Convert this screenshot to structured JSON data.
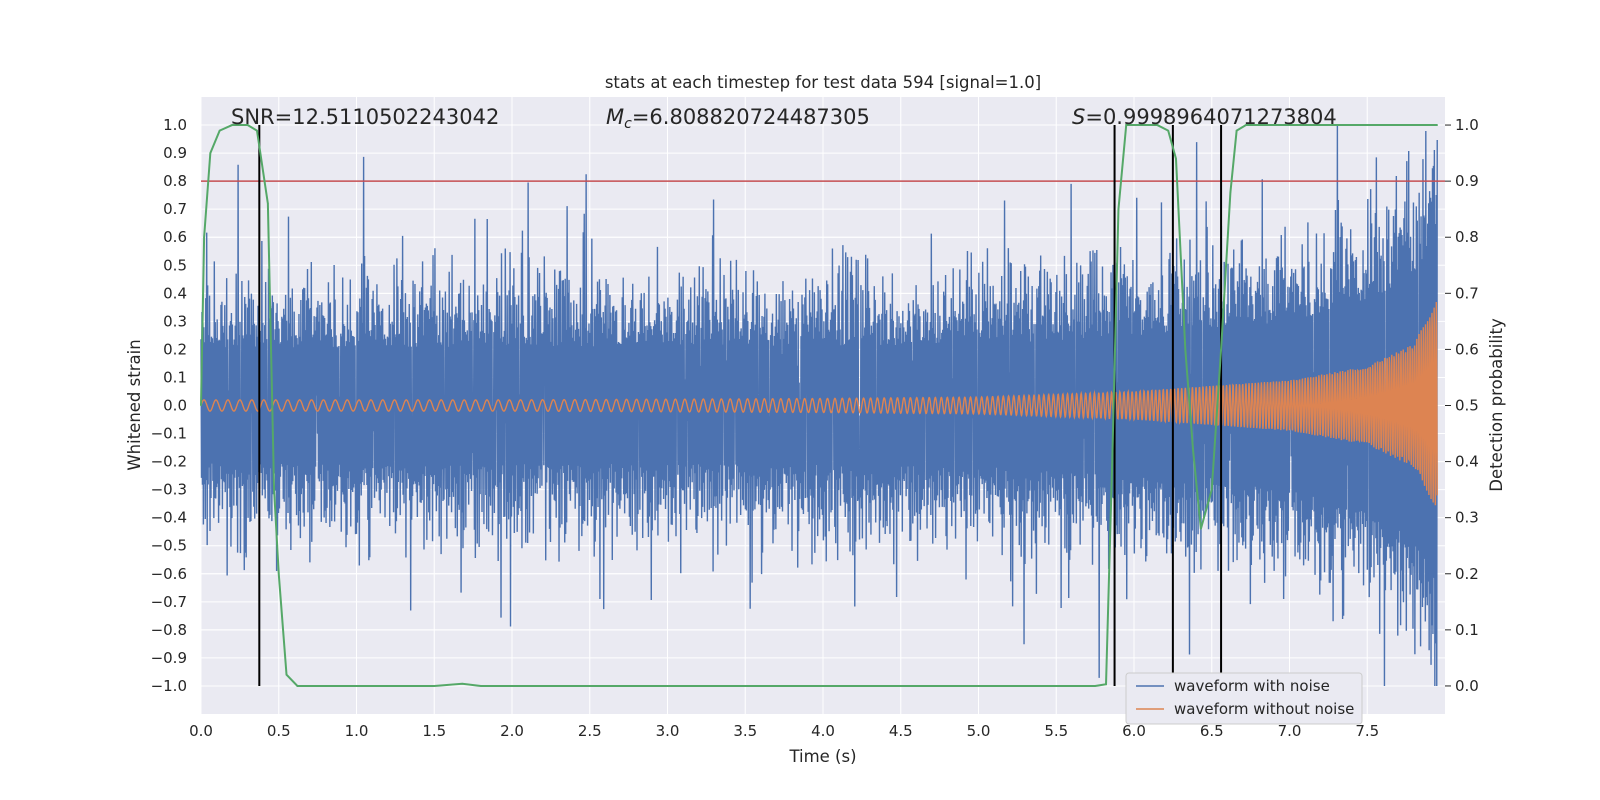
{
  "chart_data": {
    "type": "line",
    "title": "stats at each timestep for test data 594 [signal=1.0]",
    "xlabel": "Time (s)",
    "ylabel": "Whitened strain",
    "y2label": "Detection probability",
    "xlim": [
      0.0,
      8.0
    ],
    "ylim": [
      -1.1,
      1.1
    ],
    "y2lim": [
      -0.05,
      1.05
    ],
    "x_ticks": [
      "0.0",
      "0.5",
      "1.0",
      "1.5",
      "2.0",
      "2.5",
      "3.0",
      "3.5",
      "4.0",
      "4.5",
      "5.0",
      "5.5",
      "6.0",
      "6.5",
      "7.0",
      "7.5"
    ],
    "y_ticks": [
      "1.0",
      "0.9",
      "0.8",
      "0.7",
      "0.6",
      "0.5",
      "0.4",
      "0.3",
      "0.2",
      "0.1",
      "0.0",
      "−0.1",
      "−0.2",
      "−0.3",
      "−0.4",
      "−0.5",
      "−0.6",
      "−0.7",
      "−0.8",
      "−0.9",
      "−1.0"
    ],
    "y2_ticks": [
      "1.0",
      "0.9",
      "0.8",
      "0.7",
      "0.6",
      "0.5",
      "0.4",
      "0.3",
      "0.2",
      "0.1",
      "0.0"
    ],
    "annotations": {
      "snr": "SNR=12.5110502243042",
      "mc_symbol": "M",
      "mc_sub": "c",
      "mc_value": "=6.808820724487305",
      "s_symbol": "S",
      "s_value": "=0.9998964071273804"
    },
    "threshold": {
      "axis": "y2",
      "value": 0.9,
      "color": "#c44e52"
    },
    "vertical_markers": {
      "x": [
        0.375,
        5.875,
        6.25,
        6.56
      ],
      "y2_range": [
        0.0,
        1.0
      ],
      "color": "#000000"
    },
    "series": [
      {
        "name": "waveform with noise",
        "color": "#4c72b0",
        "envelope_t": [
          0.0,
          1.0,
          2.0,
          3.0,
          4.0,
          5.0,
          6.0,
          7.0,
          7.5,
          7.95
        ],
        "envelope_amp": [
          0.34,
          0.34,
          0.34,
          0.34,
          0.34,
          0.34,
          0.36,
          0.38,
          0.42,
          0.45
        ]
      },
      {
        "name": "waveform without noise",
        "color": "#dd8452",
        "chirp_t": [
          0.0,
          2.0,
          4.0,
          5.0,
          6.0,
          7.0,
          7.5,
          7.8,
          7.95
        ],
        "chirp_amp": [
          0.02,
          0.02,
          0.025,
          0.03,
          0.05,
          0.09,
          0.14,
          0.22,
          0.38
        ]
      },
      {
        "name": "Detection probability",
        "axis": "y2",
        "color": "#55a868",
        "x": [
          0.0,
          0.02,
          0.06,
          0.12,
          0.2,
          0.3,
          0.36,
          0.43,
          0.47,
          0.5,
          0.55,
          0.62,
          0.8,
          1.0,
          1.2,
          1.5,
          1.68,
          1.8,
          2.0,
          3.0,
          4.0,
          5.0,
          5.75,
          5.82,
          5.86,
          5.9,
          5.95,
          6.05,
          6.15,
          6.22,
          6.27,
          6.33,
          6.38,
          6.43,
          6.5,
          6.56,
          6.62,
          6.66,
          6.72,
          7.0,
          7.5,
          7.95
        ],
        "values": [
          0.5,
          0.8,
          0.95,
          0.99,
          1.0,
          1.0,
          0.99,
          0.86,
          0.35,
          0.2,
          0.02,
          0.0,
          0.0,
          0.0,
          0.0,
          0.0,
          0.004,
          0.0,
          0.0,
          0.0,
          0.0,
          0.0,
          0.0,
          0.003,
          0.4,
          0.85,
          1.0,
          1.0,
          1.0,
          0.99,
          0.94,
          0.6,
          0.42,
          0.28,
          0.35,
          0.6,
          0.88,
          0.99,
          1.0,
          1.0,
          1.0,
          1.0
        ]
      }
    ],
    "legend": {
      "position": "lower-right",
      "entries": [
        "waveform with noise",
        "waveform without noise"
      ]
    }
  },
  "style": {
    "axes_facecolor": "#eaeaf2",
    "grid_color": "#ffffff",
    "text_color": "#262626",
    "legend_facecolor": "#eaeaf2",
    "legend_edgecolor": "#cccccc"
  }
}
